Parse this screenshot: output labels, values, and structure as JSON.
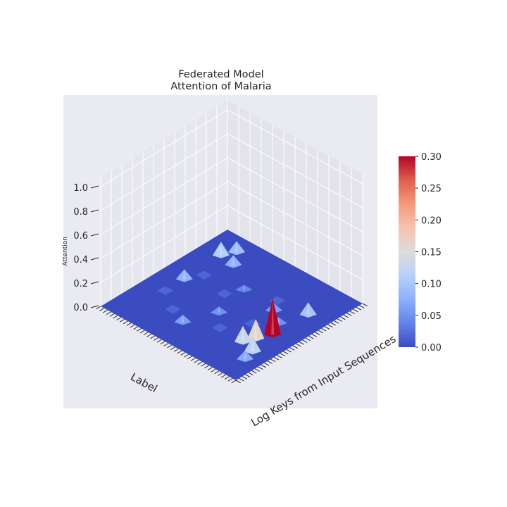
{
  "chart_data": {
    "type": "surface3d",
    "title_line1": "Federated Model",
    "title_line2": "Attention of Malaria",
    "xlabel": "Log Keys from Input Sequences",
    "ylabel": "Label",
    "zlabel": "Attention",
    "zticks": [
      "0.0",
      "0.2",
      "0.4",
      "0.6",
      "0.8",
      "1.0"
    ],
    "zlim": [
      0,
      1
    ],
    "colormap": "coolwarm",
    "colorbar": {
      "range": [
        0,
        0.3
      ],
      "ticks": [
        "0.00",
        "0.05",
        "0.10",
        "0.15",
        "0.20",
        "0.25",
        "0.30"
      ]
    },
    "peaks": [
      {
        "x": 0.45,
        "y": 0.15,
        "z": 0.3
      },
      {
        "x": 0.36,
        "y": 0.19,
        "z": 0.16
      },
      {
        "x": 0.29,
        "y": 0.22,
        "z": 0.13
      },
      {
        "x": 0.26,
        "y": 0.12,
        "z": 0.12
      },
      {
        "x": 0.18,
        "y": 0.1,
        "z": 0.07
      },
      {
        "x": 0.72,
        "y": 0.14,
        "z": 0.1
      },
      {
        "x": 0.8,
        "y": 0.86,
        "z": 0.11
      },
      {
        "x": 0.88,
        "y": 0.82,
        "z": 0.09
      },
      {
        "x": 0.78,
        "y": 0.75,
        "z": 0.08
      },
      {
        "x": 0.62,
        "y": 0.3,
        "z": 0.06
      },
      {
        "x": 0.2,
        "y": 0.58,
        "z": 0.06
      },
      {
        "x": 0.5,
        "y": 0.85,
        "z": 0.08
      },
      {
        "x": 0.4,
        "y": 0.5,
        "z": 0.05
      },
      {
        "x": 0.55,
        "y": 0.2,
        "z": 0.05
      },
      {
        "x": 0.65,
        "y": 0.55,
        "z": 0.04
      }
    ]
  }
}
